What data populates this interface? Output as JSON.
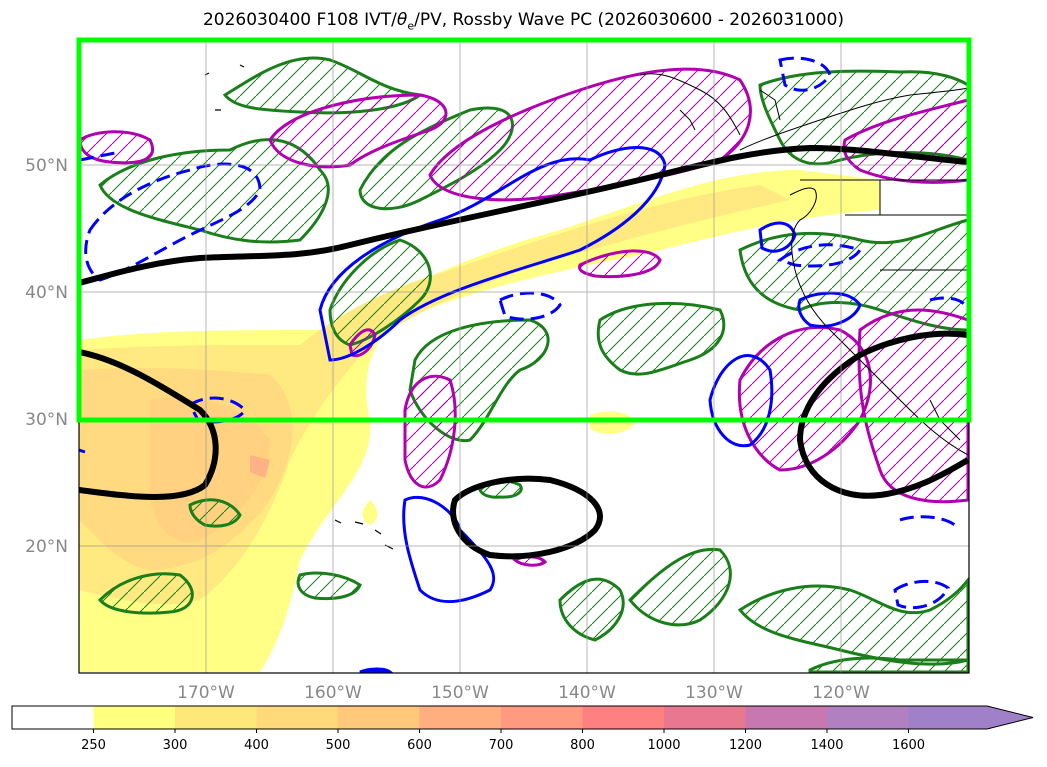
{
  "title": "2026030400 F108 IVT/θe/PV, Rossby Wave PC (2026030600 - 2026031000)",
  "title_parts": {
    "prefix": "2026030400 F108 IVT/",
    "theta": "θ",
    "sub": "e",
    "suffix": "/PV, Rossby Wave PC (2026030600 - 2026031000)"
  },
  "map": {
    "lat_labels": [
      "50°N",
      "40°N",
      "30°N",
      "20°N"
    ],
    "lon_labels": [
      "170°W",
      "160°W",
      "150°W",
      "140°W",
      "130°W",
      "120°W"
    ],
    "lat_range": [
      10,
      60
    ],
    "lon_range": [
      -180,
      -110
    ],
    "highlight_box": {
      "lat_min": 30,
      "lat_max": 60,
      "lon_min": -180,
      "lon_max": -110,
      "color": "#00ff00"
    },
    "colors": {
      "pv_contour": "#000000",
      "positive_pc": "#1a7f1a",
      "negative_pc": "#0000ff",
      "theta_e": "#b000b0",
      "highlight": "#00ff00"
    }
  },
  "colorbar": {
    "labels": [
      "250",
      "300",
      "400",
      "500",
      "600",
      "700",
      "800",
      "1000",
      "1200",
      "1400",
      "1600"
    ],
    "colors": [
      "#ffffff",
      "#ffff80",
      "#ffe87a",
      "#ffd97a",
      "#ffc87a",
      "#ffae80",
      "#ff9a80",
      "#ff8080",
      "#e87890",
      "#c878b0",
      "#b080c0",
      "#a080c8"
    ],
    "extend": "max"
  }
}
